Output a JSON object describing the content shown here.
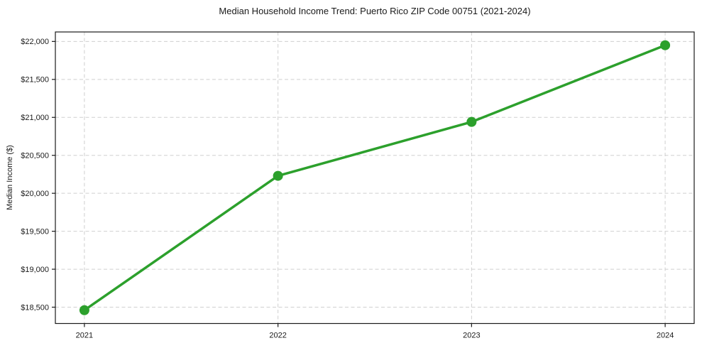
{
  "chart_data": {
    "type": "line",
    "title": "Median Household Income Trend: Puerto Rico ZIP Code 00751 (2021-2024)",
    "xlabel": "",
    "ylabel": "Median Income ($)",
    "x": [
      2021,
      2022,
      2023,
      2024
    ],
    "x_tick_labels": [
      "2021",
      "2022",
      "2023",
      "2024"
    ],
    "series": [
      {
        "name": "Median Household Income",
        "values": [
          18460,
          20230,
          20940,
          21950
        ]
      }
    ],
    "y_ticks": [
      18500,
      19000,
      19500,
      20000,
      20500,
      21000,
      21500,
      22000
    ],
    "y_tick_labels": [
      "$18,500",
      "$19,000",
      "$19,500",
      "$20,000",
      "$20,500",
      "$21,000",
      "$21,500",
      "$22,000"
    ],
    "xlim": [
      2020.85,
      2024.15
    ],
    "ylim": [
      18285,
      22125
    ],
    "grid": true,
    "grid_style": "dashed",
    "grid_color": "#cfcfcf",
    "legend_position": "none",
    "line_color": "#2ca02c",
    "marker": "circle",
    "marker_color": "#2ca02c",
    "frame_color": "#1a1a1a",
    "background": "#ffffff"
  }
}
